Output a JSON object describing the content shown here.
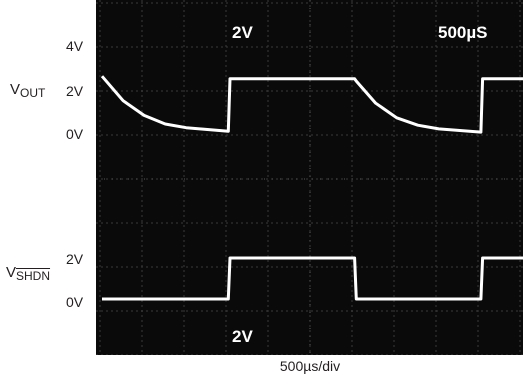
{
  "chart_data": {
    "type": "line",
    "title": "",
    "xlabel": "500µs/div",
    "scope_annotations": {
      "ch1_scale": "2V",
      "timebase": "500µS",
      "ch2_scale": "2V"
    },
    "xlim": [
      0,
      5000
    ],
    "x_unit": "µs",
    "grid": true,
    "divisions": {
      "horizontal": 10,
      "vertical": 8
    },
    "series": [
      {
        "name": "VOUT",
        "label_main": "V",
        "label_sub": "OUT",
        "axis_ticks": [
          "4V",
          "2V",
          "0V"
        ],
        "x": [
          0,
          250,
          500,
          750,
          1000,
          1500,
          1520,
          3000,
          3020,
          3250,
          3500,
          3750,
          4000,
          4500,
          4520,
          5000
        ],
        "y": [
          2.4,
          1.4,
          0.8,
          0.45,
          0.3,
          0.15,
          2.3,
          2.3,
          2.2,
          1.3,
          0.7,
          0.4,
          0.25,
          0.12,
          2.3,
          2.3
        ],
        "y_unit": "V",
        "color": "#ffffff"
      },
      {
        "name": "VSHDN",
        "label_main": "V",
        "label_sub": "SHDN",
        "axis_ticks": [
          "2V",
          "0V"
        ],
        "x": [
          0,
          1500,
          1520,
          3000,
          3020,
          4500,
          4520,
          5000
        ],
        "y": [
          0,
          0,
          2,
          2,
          0,
          0,
          2,
          2
        ],
        "y_unit": "V",
        "color": "#ffffff"
      }
    ]
  }
}
